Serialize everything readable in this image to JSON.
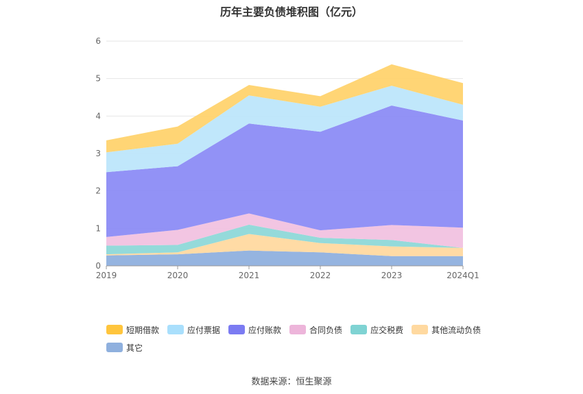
{
  "chart_data": {
    "type": "area",
    "stacked": true,
    "title": "历年主要负债堆积图（亿元）",
    "categories": [
      "2019",
      "2020",
      "2021",
      "2022",
      "2023",
      "2024Q1"
    ],
    "ylim": [
      0,
      6
    ],
    "yticks": [
      "0",
      "1",
      "2",
      "3",
      "4",
      "5",
      "6"
    ],
    "grid": true,
    "legend_position": "bottom",
    "series": [
      {
        "name": "其它",
        "color": "#8FB0DE",
        "values": [
          0.28,
          0.31,
          0.41,
          0.36,
          0.26,
          0.26
        ]
      },
      {
        "name": "其他流动负债",
        "color": "#FFD9A0",
        "values": [
          0.03,
          0.05,
          0.44,
          0.25,
          0.26,
          0.22
        ]
      },
      {
        "name": "应交税费",
        "color": "#8ED8D8",
        "values": [
          0.23,
          0.2,
          0.25,
          0.14,
          0.17,
          0.0
        ]
      },
      {
        "name": "合同负债",
        "color": "#F1C2E0",
        "values": [
          0.23,
          0.4,
          0.3,
          0.2,
          0.4,
          0.54
        ]
      },
      {
        "name": "应付账款",
        "color": "#8C8CF6",
        "values": [
          1.73,
          1.7,
          2.4,
          2.63,
          3.19,
          2.86
        ]
      },
      {
        "name": "应付票据",
        "color": "#BDE6FB",
        "values": [
          0.53,
          0.6,
          0.75,
          0.67,
          0.53,
          0.42
        ]
      },
      {
        "name": "短期借款",
        "color": "#FFD36E",
        "values": [
          0.32,
          0.46,
          0.28,
          0.28,
          0.57,
          0.58
        ]
      }
    ],
    "legend_order": [
      "短期借款",
      "应付票据",
      "应付账款",
      "合同负债",
      "应交税费",
      "其他流动负债",
      "其它"
    ],
    "legend_colors": [
      "#FFC53D",
      "#A9DFFC",
      "#7B7BF2",
      "#EDB5DA",
      "#7FD3D3",
      "#FFD9A0",
      "#8FB0DE"
    ]
  },
  "source": "数据来源：恒生聚源"
}
